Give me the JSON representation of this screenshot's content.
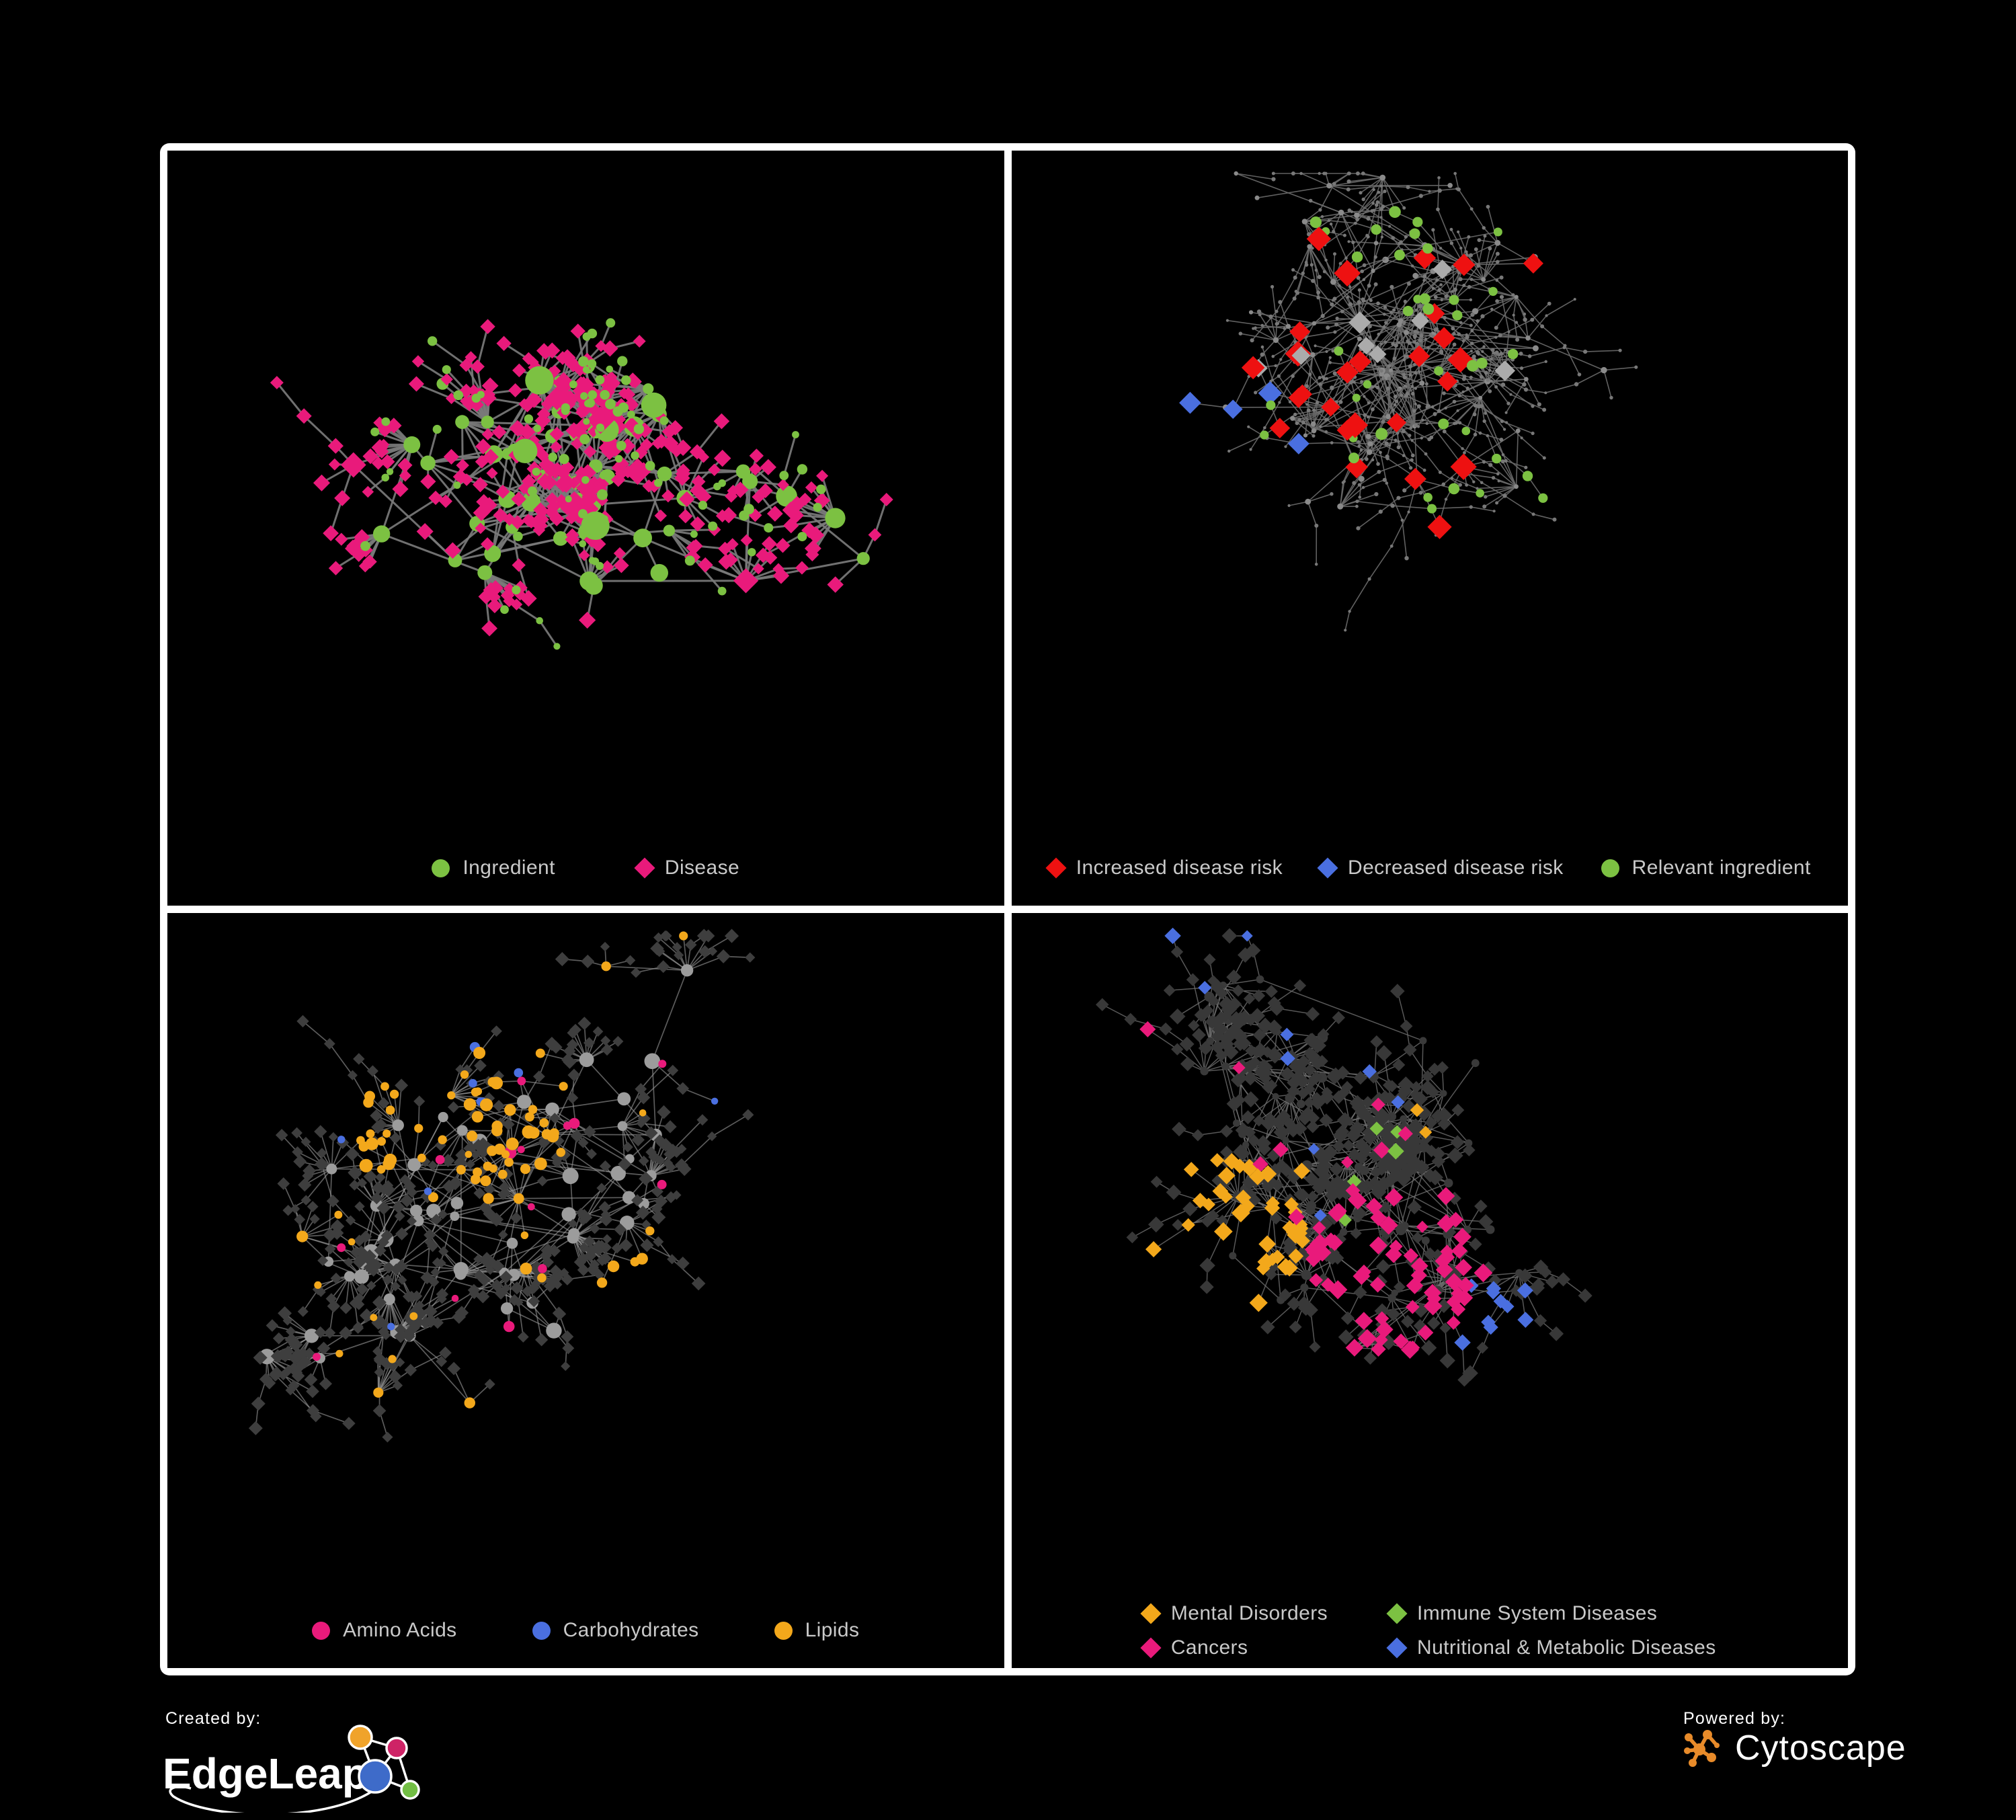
{
  "panels": [
    {
      "id": "ingredients-vs-diseases",
      "legend": [
        {
          "shape": "circle",
          "color": "#7CC142",
          "label": "Ingredient"
        },
        {
          "shape": "diamond",
          "color": "#E91A7B",
          "label": "Disease"
        }
      ],
      "net": {
        "seed": 7,
        "start": [
          0.46,
          0.42
        ],
        "hubs": 62,
        "step": 108,
        "maxLeaves": 16,
        "leafDist": 45,
        "chainProb": 0.22,
        "chainMax": 3,
        "extraEdges": 42,
        "edge": {
          "color": "#7A7A7A",
          "width": 3.0,
          "opacity": 0.92
        },
        "defaults": {
          "hub": {
            "shape": "circle",
            "color": "#7CC142",
            "rmin": 8,
            "rmax": 16
          },
          "leaf": {
            "shape": "diamond",
            "color": "#E91A7B",
            "rmin": 6,
            "rmax": 9
          }
        },
        "rules": [
          {
            "applyTo": "hub",
            "p": 0.06,
            "shape": "circle",
            "color": "#7CC142",
            "rmin": 17,
            "rmax": 23
          },
          {
            "applyTo": "hub",
            "p": 0.1,
            "shape": "diamond",
            "color": "#E91A7B",
            "rmin": 10,
            "rmax": 15
          },
          {
            "applyTo": "leaf",
            "p": 0.18,
            "shape": "circle",
            "color": "#7CC142",
            "rmin": 5,
            "rmax": 8
          }
        ]
      }
    },
    {
      "id": "disease-risk",
      "legend": [
        {
          "shape": "diamond",
          "color": "#EE1111",
          "label": "Increased disease risk"
        },
        {
          "shape": "diamond",
          "color": "#4A6FE0",
          "label": "Decreased disease risk"
        },
        {
          "shape": "circle",
          "color": "#7CC142",
          "label": "Relevant ingredient"
        }
      ],
      "net": {
        "seed": 1234,
        "start": [
          0.46,
          0.4
        ],
        "hubs": 85,
        "step": 120,
        "maxLeaves": 13,
        "leafDist": 40,
        "chainProb": 0.5,
        "chainMax": 5,
        "extraEdges": 22,
        "edge": {
          "color": "#6B6B6B",
          "width": 1.6,
          "opacity": 0.9
        },
        "defaults": {
          "hub": {
            "shape": "circle",
            "color": "#8A8A8A",
            "rmin": 3,
            "rmax": 5
          },
          "leaf": {
            "shape": "circle",
            "color": "#787878",
            "rmin": 2,
            "rmax": 3.2
          }
        },
        "rules": [
          {
            "applyTo": "any",
            "zone": [
              0.45,
              0.4,
              0.27
            ],
            "p": 0.1,
            "max": 26,
            "shape": "diamond",
            "color": "#EE1111",
            "rmin": 10,
            "rmax": 14
          },
          {
            "applyTo": "any",
            "zone": [
              0.26,
              0.44,
              0.09
            ],
            "p": 0.35,
            "max": 7,
            "shape": "diamond",
            "color": "#4A6FE0",
            "rmin": 10,
            "rmax": 13
          },
          {
            "applyTo": "any",
            "zone": [
              0.8,
              0.3,
              0.05
            ],
            "p": 0.8,
            "max": 2,
            "shape": "diamond",
            "color": "#4A6FE0",
            "rmin": 10,
            "rmax": 12
          },
          {
            "applyTo": "any",
            "zone": [
              0.7,
              0.74,
              0.08
            ],
            "p": 0.5,
            "max": 3,
            "shape": "diamond",
            "color": "#EE1111",
            "rmin": 10,
            "rmax": 12
          },
          {
            "applyTo": "any",
            "zone": [
              0.44,
              0.42,
              0.26
            ],
            "p": 0.05,
            "max": 8,
            "shape": "diamond",
            "color": "#ABABAB",
            "rmin": 9,
            "rmax": 12
          },
          {
            "applyTo": "any",
            "zone": [
              0.4,
              0.4,
              0.33
            ],
            "p": 0.1,
            "max": 38,
            "shape": "circle",
            "color": "#7CC142",
            "rmin": 6,
            "rmax": 9
          }
        ]
      }
    },
    {
      "id": "nutrient-classes",
      "legend": [
        {
          "shape": "circle",
          "color": "#E91A7B",
          "label": "Amino Acids"
        },
        {
          "shape": "circle",
          "color": "#4A6FE0",
          "label": "Carbohydrates"
        },
        {
          "shape": "circle",
          "color": "#F3A81B",
          "label": "Lipids"
        }
      ],
      "net": {
        "seed": 99,
        "start": [
          0.42,
          0.42
        ],
        "hubs": 72,
        "step": 110,
        "maxLeaves": 15,
        "leafDist": 42,
        "chainProb": 0.3,
        "chainMax": 4,
        "extraEdges": 40,
        "edge": {
          "color": "#9A9A9A",
          "width": 1.7,
          "opacity": 0.6
        },
        "defaults": {
          "hub": {
            "shape": "circle",
            "color": "#9C9C9C",
            "rmin": 7,
            "rmax": 12
          },
          "leaf": {
            "shape": "diamond",
            "color": "#3E3E3E",
            "rmin": 5,
            "rmax": 7.5
          }
        },
        "rules": [
          {
            "applyTo": "any",
            "zone": [
              0.34,
              0.26,
              0.14
            ],
            "p": 0.4,
            "shape": "circle",
            "color": "#F3A81B",
            "rmin": 6,
            "rmax": 10
          },
          {
            "applyTo": "any",
            "zone": [
              0.4,
              0.2,
              0.07
            ],
            "p": 0.35,
            "max": 9,
            "shape": "circle",
            "color": "#4A6FE0",
            "rmin": 6,
            "rmax": 8
          },
          {
            "applyTo": "any",
            "zone": [
              0.56,
              0.55,
              0.05
            ],
            "p": 0.65,
            "max": 8,
            "shape": "circle",
            "color": "#F3A81B",
            "rmin": 7,
            "rmax": 9
          },
          {
            "applyTo": "hub",
            "p": 0.1,
            "shape": "circle",
            "color": "#F3A81B",
            "rmin": 6,
            "rmax": 9
          },
          {
            "applyTo": "hub",
            "p": 0.08,
            "max": 22,
            "shape": "circle",
            "color": "#E91A7B",
            "rmin": 6,
            "rmax": 9
          },
          {
            "applyTo": "leaf",
            "p": 0.035,
            "shape": "circle",
            "color": "#F3A81B",
            "rmin": 5,
            "rmax": 7
          },
          {
            "applyTo": "leaf",
            "p": 0.018,
            "max": 12,
            "shape": "circle",
            "color": "#E91A7B",
            "rmin": 5,
            "rmax": 7
          },
          {
            "applyTo": "leaf",
            "p": 0.012,
            "max": 8,
            "shape": "circle",
            "color": "#4A6FE0",
            "rmin": 5,
            "rmax": 6
          }
        ]
      }
    },
    {
      "id": "disease-categories",
      "legend": [
        {
          "shape": "diamond",
          "color": "#F3A81B",
          "label": "Mental Disorders"
        },
        {
          "shape": "diamond",
          "color": "#7CC142",
          "label": "Immune System Diseases"
        },
        {
          "shape": "diamond",
          "color": "#E91A7B",
          "label": "Cancers"
        },
        {
          "shape": "diamond",
          "color": "#4A6FE0",
          "label": "Nutritional & Metabolic Diseases"
        }
      ],
      "net": {
        "seed": 2024,
        "start": [
          0.47,
          0.46
        ],
        "hubs": 90,
        "step": 112,
        "maxLeaves": 13,
        "leafDist": 38,
        "chainProb": 0.35,
        "chainMax": 4,
        "extraEdges": 30,
        "edge": {
          "color": "#6E6E6E",
          "width": 1.5,
          "opacity": 0.8
        },
        "defaults": {
          "hub": {
            "shape": "circle",
            "color": "#3A3A3A",
            "rmin": 5,
            "rmax": 8
          },
          "leaf": {
            "shape": "diamond",
            "color": "#383838",
            "rmin": 6,
            "rmax": 8.5
          }
        },
        "rules": [
          {
            "applyTo": "any",
            "zone": [
              0.22,
              0.5,
              0.13
            ],
            "p": 0.55,
            "shape": "diamond",
            "color": "#F3A81B",
            "rmin": 7,
            "rmax": 10
          },
          {
            "applyTo": "any",
            "zone": [
              0.46,
              0.52,
              0.11
            ],
            "p": 0.38,
            "shape": "diamond",
            "color": "#E91A7B",
            "rmin": 7,
            "rmax": 10
          },
          {
            "applyTo": "any",
            "zone": [
              0.58,
              0.6,
              0.06
            ],
            "p": 0.55,
            "shape": "diamond",
            "color": "#4A6FE0",
            "rmin": 7,
            "rmax": 9
          },
          {
            "applyTo": "any",
            "zone": [
              0.78,
              0.22,
              0.16
            ],
            "p": 0.16,
            "shape": "diamond",
            "color": "#4A6FE0",
            "rmin": 7,
            "rmax": 9
          },
          {
            "applyTo": "any",
            "zone": [
              0.88,
              0.3,
              0.06
            ],
            "p": 0.5,
            "max": 6,
            "shape": "diamond",
            "color": "#E91A7B",
            "rmin": 7,
            "rmax": 9
          },
          {
            "applyTo": "any",
            "p": 0.03,
            "max": 45,
            "shape": "diamond",
            "color": "#4A6FE0",
            "rmin": 6,
            "rmax": 9
          },
          {
            "applyTo": "any",
            "p": 0.012,
            "max": 18,
            "shape": "diamond",
            "color": "#E91A7B",
            "rmin": 6,
            "rmax": 9
          },
          {
            "applyTo": "any",
            "p": 0.01,
            "max": 10,
            "shape": "diamond",
            "color": "#F3A81B",
            "rmin": 6,
            "rmax": 9
          },
          {
            "applyTo": "any",
            "p": 0.008,
            "max": 8,
            "shape": "diamond",
            "color": "#7CC142",
            "rmin": 7,
            "rmax": 9
          }
        ]
      }
    }
  ],
  "footer": {
    "created_by": "Created by:",
    "brand_left": "EdgeLeap",
    "powered_by": "Powered by:",
    "brand_right": "Cytoscape",
    "logo": {
      "orange": "#F0A32A",
      "magenta": "#CE2366",
      "blue": "#3E6BC9",
      "green": "#72BE44",
      "white": "#FFFFFF",
      "cytoscape_orange": "#E88B2A"
    }
  }
}
